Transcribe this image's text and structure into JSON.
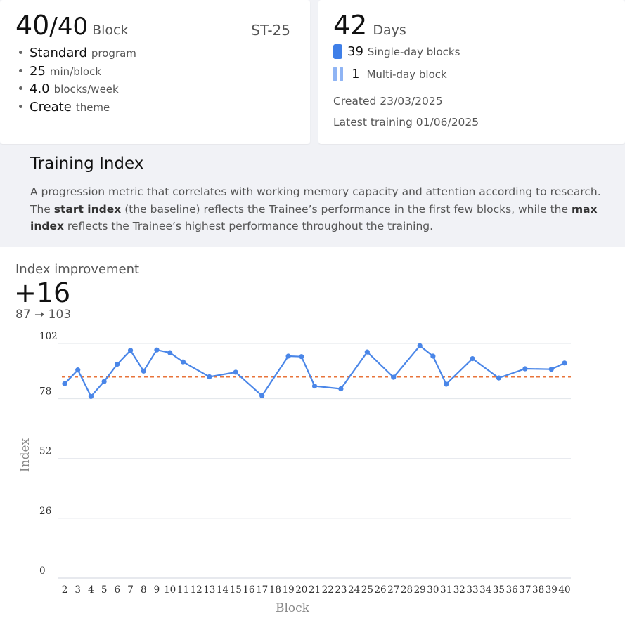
{
  "summary": {
    "blocks_done": "40",
    "blocks_total": "/40",
    "blocks_unit": "Block",
    "code": "ST-25",
    "props": [
      {
        "value": "Standard",
        "key": "program"
      },
      {
        "value": "25",
        "key": "min/block"
      },
      {
        "value": "4.0",
        "key": "blocks/week"
      },
      {
        "value": "Create",
        "key": "theme"
      }
    ]
  },
  "days": {
    "count": "42",
    "unit": "Days",
    "single_count": "39",
    "single_label": "Single-day blocks",
    "multi_count": "1",
    "multi_label": "Multi-day block",
    "created": "Created 23/03/2025",
    "latest": "Latest training 01/06/2025",
    "colors": {
      "single": "#3f7fe8",
      "multi": "#8fb4f4"
    }
  },
  "training_index": {
    "title": "Training Index",
    "desc_1": "A progression metric that correlates with working memory capacity and attention according to research. The ",
    "desc_start": "start index",
    "desc_2": " (the baseline) reflects the Trainee’s performance in the first few blocks, while the ",
    "desc_max": "max index",
    "desc_3": " reflects the Trainee’s highest performance throughout the training."
  },
  "improvement": {
    "label": "Index improvement",
    "delta": "+16",
    "range": "87 ➝ 103"
  },
  "chart_data": {
    "type": "line",
    "xlabel": "Block",
    "ylabel": "Index",
    "ylim": [
      0,
      102
    ],
    "yticks": [
      0,
      26,
      52,
      78,
      102
    ],
    "grid": true,
    "x": [
      2,
      3,
      4,
      5,
      6,
      7,
      8,
      9,
      10,
      11,
      12,
      13,
      14,
      15,
      16,
      17,
      18,
      19,
      20,
      21,
      22,
      23,
      24,
      25,
      26,
      27,
      28,
      29,
      30,
      31,
      32,
      33,
      34,
      35,
      36,
      37,
      38,
      39,
      40
    ],
    "series": [
      {
        "x": [
          2,
          3,
          4,
          5,
          6,
          7,
          8,
          9,
          10,
          11,
          13,
          15,
          17,
          19,
          20,
          21,
          23,
          25,
          27,
          29,
          30,
          31,
          33,
          35,
          37,
          39,
          40
        ],
        "values": [
          84.5,
          90.5,
          79,
          85.5,
          93,
          99,
          90,
          99.2,
          98,
          94,
          87.5,
          89.5,
          79.3,
          96.5,
          96.3,
          83.5,
          82.3,
          98.3,
          87.3,
          101,
          96.5,
          84.3,
          95.4,
          87,
          91,
          90.8,
          93.5
        ],
        "color": "#4a86e8"
      }
    ],
    "reference_line": {
      "value": 87.5,
      "color": "#e8743b",
      "style": "dashed"
    }
  }
}
